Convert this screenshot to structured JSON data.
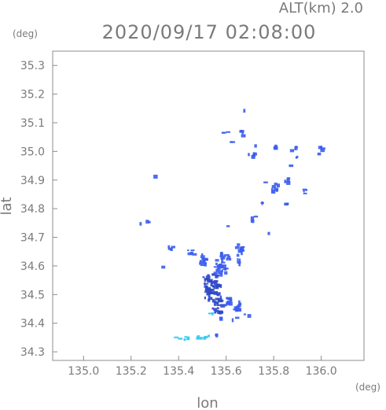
{
  "chart_data": {
    "type": "heatmap",
    "title": "2020/09/17 02:08:00",
    "altitude_label": "ALT(km) 2.0",
    "xlabel": "lon",
    "ylabel": "lat",
    "x_unit": "(deg)",
    "y_unit": "(deg)",
    "xlim": [
      134.87,
      136.18
    ],
    "ylim": [
      34.27,
      35.35
    ],
    "x_ticks": [
      135.0,
      135.2,
      135.4,
      135.6,
      135.8,
      136.0
    ],
    "y_ticks": [
      34.3,
      34.4,
      34.5,
      34.6,
      34.7,
      34.8,
      34.9,
      35.0,
      35.1,
      35.2,
      35.3
    ],
    "grid": false,
    "colors": {
      "frame": "#8c8c8c",
      "text": "#7a7a7a",
      "echo_weak": "#3a5cf0",
      "echo_strong": "#2f48c8",
      "echo_cyan": "#2ec8f2"
    },
    "echoes": [
      {
        "lon": 135.54,
        "lat": 34.51,
        "w": 0.07,
        "h": 0.06,
        "level": "strong"
      },
      {
        "lon": 135.53,
        "lat": 34.55,
        "w": 0.06,
        "h": 0.05,
        "level": "strong"
      },
      {
        "lon": 135.56,
        "lat": 34.46,
        "w": 0.05,
        "h": 0.04,
        "level": "strong"
      },
      {
        "lon": 135.6,
        "lat": 34.48,
        "w": 0.03,
        "h": 0.04,
        "level": "weak"
      },
      {
        "lon": 135.64,
        "lat": 34.47,
        "w": 0.03,
        "h": 0.05,
        "level": "weak"
      },
      {
        "lon": 135.57,
        "lat": 34.6,
        "w": 0.05,
        "h": 0.05,
        "level": "weak"
      },
      {
        "lon": 135.5,
        "lat": 34.62,
        "w": 0.03,
        "h": 0.05,
        "level": "weak"
      },
      {
        "lon": 135.45,
        "lat": 34.65,
        "w": 0.03,
        "h": 0.02,
        "level": "weak"
      },
      {
        "lon": 135.59,
        "lat": 34.64,
        "w": 0.04,
        "h": 0.03,
        "level": "weak"
      },
      {
        "lon": 135.65,
        "lat": 34.66,
        "w": 0.03,
        "h": 0.04,
        "level": "weak"
      },
      {
        "lon": 135.65,
        "lat": 34.62,
        "w": 0.02,
        "h": 0.02,
        "level": "weak"
      },
      {
        "lon": 135.68,
        "lat": 34.43,
        "w": 0.02,
        "h": 0.01,
        "level": "weak"
      },
      {
        "lon": 135.63,
        "lat": 34.42,
        "w": 0.02,
        "h": 0.01,
        "level": "weak"
      },
      {
        "lon": 135.58,
        "lat": 34.42,
        "w": 0.02,
        "h": 0.01,
        "level": "weak"
      },
      {
        "lon": 135.53,
        "lat": 34.44,
        "w": 0.02,
        "h": 0.01,
        "level": "cyan"
      },
      {
        "lon": 135.39,
        "lat": 34.35,
        "w": 0.02,
        "h": 0.01,
        "level": "cyan"
      },
      {
        "lon": 135.43,
        "lat": 34.35,
        "w": 0.03,
        "h": 0.01,
        "level": "cyan"
      },
      {
        "lon": 135.47,
        "lat": 34.355,
        "w": 0.03,
        "h": 0.01,
        "level": "cyan"
      },
      {
        "lon": 135.51,
        "lat": 34.357,
        "w": 0.03,
        "h": 0.012,
        "level": "cyan"
      },
      {
        "lon": 135.55,
        "lat": 34.36,
        "w": 0.02,
        "h": 0.01,
        "level": "weak"
      },
      {
        "lon": 135.36,
        "lat": 34.67,
        "w": 0.02,
        "h": 0.02,
        "level": "weak"
      },
      {
        "lon": 135.33,
        "lat": 34.6,
        "w": 0.01,
        "h": 0.01,
        "level": "weak"
      },
      {
        "lon": 135.27,
        "lat": 34.76,
        "w": 0.02,
        "h": 0.01,
        "level": "weak"
      },
      {
        "lon": 135.24,
        "lat": 34.75,
        "w": 0.01,
        "h": 0.01,
        "level": "weak"
      },
      {
        "lon": 135.29,
        "lat": 34.92,
        "w": 0.01,
        "h": 0.005,
        "level": "weak"
      },
      {
        "lon": 135.71,
        "lat": 34.77,
        "w": 0.02,
        "h": 0.02,
        "level": "weak"
      },
      {
        "lon": 135.75,
        "lat": 34.82,
        "w": 0.01,
        "h": 0.02,
        "level": "weak"
      },
      {
        "lon": 135.8,
        "lat": 34.88,
        "w": 0.03,
        "h": 0.03,
        "level": "weak"
      },
      {
        "lon": 135.85,
        "lat": 34.9,
        "w": 0.02,
        "h": 0.02,
        "level": "weak"
      },
      {
        "lon": 135.84,
        "lat": 34.82,
        "w": 0.02,
        "h": 0.01,
        "level": "weak"
      },
      {
        "lon": 135.76,
        "lat": 34.9,
        "w": 0.01,
        "h": 0.01,
        "level": "weak"
      },
      {
        "lon": 135.93,
        "lat": 34.86,
        "w": 0.02,
        "h": 0.02,
        "level": "weak"
      },
      {
        "lon": 135.99,
        "lat": 35.01,
        "w": 0.02,
        "h": 0.03,
        "level": "weak"
      },
      {
        "lon": 135.88,
        "lat": 35.01,
        "w": 0.03,
        "h": 0.02,
        "level": "weak"
      },
      {
        "lon": 135.9,
        "lat": 34.98,
        "w": 0.02,
        "h": 0.01,
        "level": "weak"
      },
      {
        "lon": 135.86,
        "lat": 34.95,
        "w": 0.01,
        "h": 0.01,
        "level": "weak"
      },
      {
        "lon": 135.8,
        "lat": 35.02,
        "w": 0.03,
        "h": 0.01,
        "level": "weak"
      },
      {
        "lon": 135.7,
        "lat": 34.99,
        "w": 0.03,
        "h": 0.02,
        "level": "weak"
      },
      {
        "lon": 135.72,
        "lat": 35.02,
        "w": 0.01,
        "h": 0.01,
        "level": "weak"
      },
      {
        "lon": 135.66,
        "lat": 35.07,
        "w": 0.03,
        "h": 0.02,
        "level": "weak"
      },
      {
        "lon": 135.59,
        "lat": 35.07,
        "w": 0.03,
        "h": 0.01,
        "level": "weak"
      },
      {
        "lon": 135.62,
        "lat": 35.04,
        "w": 0.02,
        "h": 0.01,
        "level": "weak"
      },
      {
        "lon": 135.67,
        "lat": 35.15,
        "w": 0.01,
        "h": 0.01,
        "level": "weak"
      },
      {
        "lon": 135.6,
        "lat": 34.74,
        "w": 0.01,
        "h": 0.005,
        "level": "weak"
      },
      {
        "lon": 135.77,
        "lat": 34.72,
        "w": 0.01,
        "h": 0.005,
        "level": "weak"
      }
    ]
  }
}
